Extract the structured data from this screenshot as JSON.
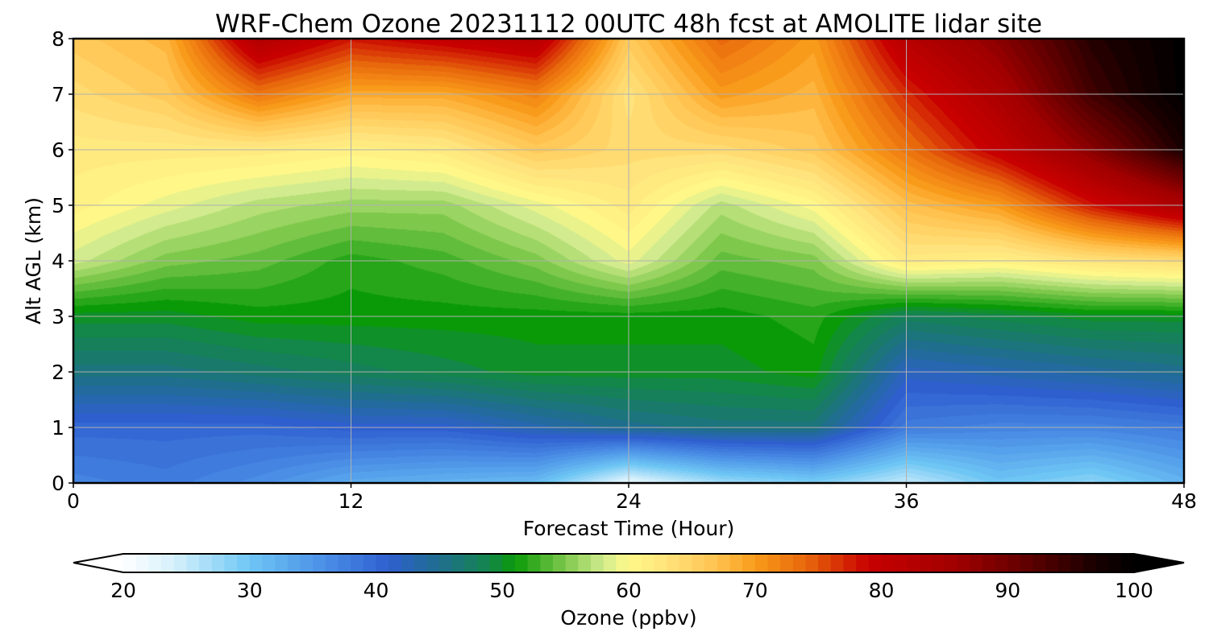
{
  "chart_data": {
    "type": "heatmap",
    "title": "WRF-Chem Ozone  20231112 00UTC 48h fcst at AMOLITE lidar site",
    "xlabel": "Forecast Time (Hour)",
    "ylabel": "Alt AGL (km)",
    "xlim": [
      0,
      48
    ],
    "ylim": [
      0,
      8
    ],
    "xticks": [
      0,
      12,
      24,
      36,
      48
    ],
    "yticks": [
      0,
      1,
      2,
      3,
      4,
      5,
      6,
      7,
      8
    ],
    "grid": true,
    "x": [
      0,
      4,
      8,
      12,
      16,
      20,
      24,
      28,
      32,
      36,
      40,
      44,
      48
    ],
    "y": [
      0,
      1,
      2,
      3,
      4,
      5,
      6,
      7,
      8
    ],
    "z": [
      [
        37,
        38,
        36,
        33,
        32,
        31,
        22,
        27,
        29,
        25,
        30,
        28,
        32
      ],
      [
        40,
        40,
        40,
        41,
        41,
        43,
        45,
        46,
        46,
        38,
        37,
        37,
        38
      ],
      [
        46,
        46,
        47,
        48,
        49,
        50,
        50,
        50,
        51,
        42,
        43,
        44,
        45
      ],
      [
        50,
        50,
        51,
        51,
        51,
        51,
        51,
        51,
        52,
        48,
        49,
        50,
        50
      ],
      [
        58,
        55,
        54,
        52,
        53,
        55,
        59,
        54,
        55,
        62,
        61,
        63,
        64
      ],
      [
        61,
        59,
        57,
        56,
        56,
        59,
        62,
        57,
        60,
        67,
        70,
        78,
        84
      ],
      [
        62,
        62,
        62,
        61,
        62,
        66,
        64,
        64,
        66,
        73,
        80,
        88,
        97
      ],
      [
        64,
        66,
        73,
        69,
        69,
        72,
        63,
        70,
        68,
        77,
        84,
        94,
        100
      ],
      [
        66,
        68,
        83,
        78,
        80,
        82,
        66,
        74,
        70,
        82,
        88,
        96,
        100
      ]
    ],
    "colorbar": {
      "label": "Ozone  (ppbv)",
      "min": 20,
      "max": 100,
      "ticks": [
        20,
        30,
        40,
        50,
        60,
        70,
        80,
        90,
        100
      ],
      "extend": "both",
      "stops": [
        {
          "value": 20,
          "color": "#ffffff"
        },
        {
          "value": 24,
          "color": "#d6f0fc"
        },
        {
          "value": 30,
          "color": "#6ec6f4"
        },
        {
          "value": 36,
          "color": "#4a8ee6"
        },
        {
          "value": 41,
          "color": "#2f5fcf"
        },
        {
          "value": 45,
          "color": "#1f6e8e"
        },
        {
          "value": 49,
          "color": "#13864a"
        },
        {
          "value": 51,
          "color": "#0a9a08"
        },
        {
          "value": 55,
          "color": "#7ec84c"
        },
        {
          "value": 58,
          "color": "#d2eb8e"
        },
        {
          "value": 60,
          "color": "#fff888"
        },
        {
          "value": 63,
          "color": "#ffe37c"
        },
        {
          "value": 67,
          "color": "#ffc24f"
        },
        {
          "value": 70,
          "color": "#f99b1a"
        },
        {
          "value": 74,
          "color": "#e8680c"
        },
        {
          "value": 79,
          "color": "#c80000"
        },
        {
          "value": 86,
          "color": "#a00000"
        },
        {
          "value": 92,
          "color": "#5a0000"
        },
        {
          "value": 97,
          "color": "#180000"
        },
        {
          "value": 100,
          "color": "#000000"
        }
      ]
    }
  }
}
